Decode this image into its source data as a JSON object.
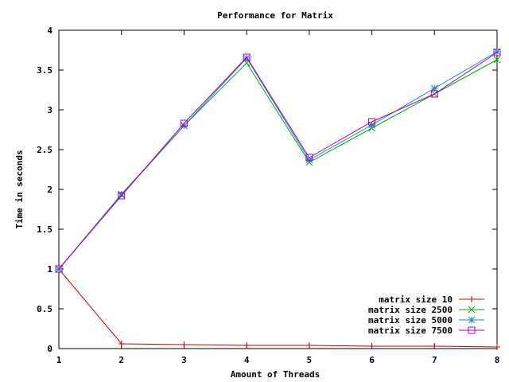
{
  "chart_data": {
    "type": "line",
    "title": "Performance for Matrix",
    "xlabel": "Amount of Threads",
    "ylabel": "Time in seconds",
    "xlim": [
      1,
      8
    ],
    "ylim": [
      0,
      4
    ],
    "x_ticks": [
      1,
      2,
      3,
      4,
      5,
      6,
      7,
      8
    ],
    "y_ticks": [
      0,
      0.5,
      1,
      1.5,
      2,
      2.5,
      3,
      3.5,
      4
    ],
    "x": [
      1,
      2,
      3,
      4,
      5,
      6,
      7,
      8
    ],
    "grid": false,
    "legend_position": "bottom-right",
    "series": [
      {
        "name": "matrix size 10",
        "color": "#cc0000",
        "marker": "plus",
        "values": [
          1.0,
          0.06,
          0.05,
          0.04,
          0.04,
          0.03,
          0.03,
          0.02
        ]
      },
      {
        "name": "matrix size 2500",
        "color": "#00b000",
        "marker": "cross",
        "values": [
          1.0,
          1.93,
          2.8,
          3.59,
          2.34,
          2.77,
          3.2,
          3.63
        ]
      },
      {
        "name": "matrix size 5000",
        "color": "#1a7fd0",
        "marker": "star",
        "values": [
          1.0,
          1.94,
          2.8,
          3.65,
          2.37,
          2.81,
          3.27,
          3.73
        ]
      },
      {
        "name": "matrix size 7500",
        "color": "#b000b0",
        "marker": "square",
        "values": [
          1.0,
          1.92,
          2.83,
          3.66,
          2.4,
          2.85,
          3.2,
          3.72
        ]
      }
    ]
  }
}
